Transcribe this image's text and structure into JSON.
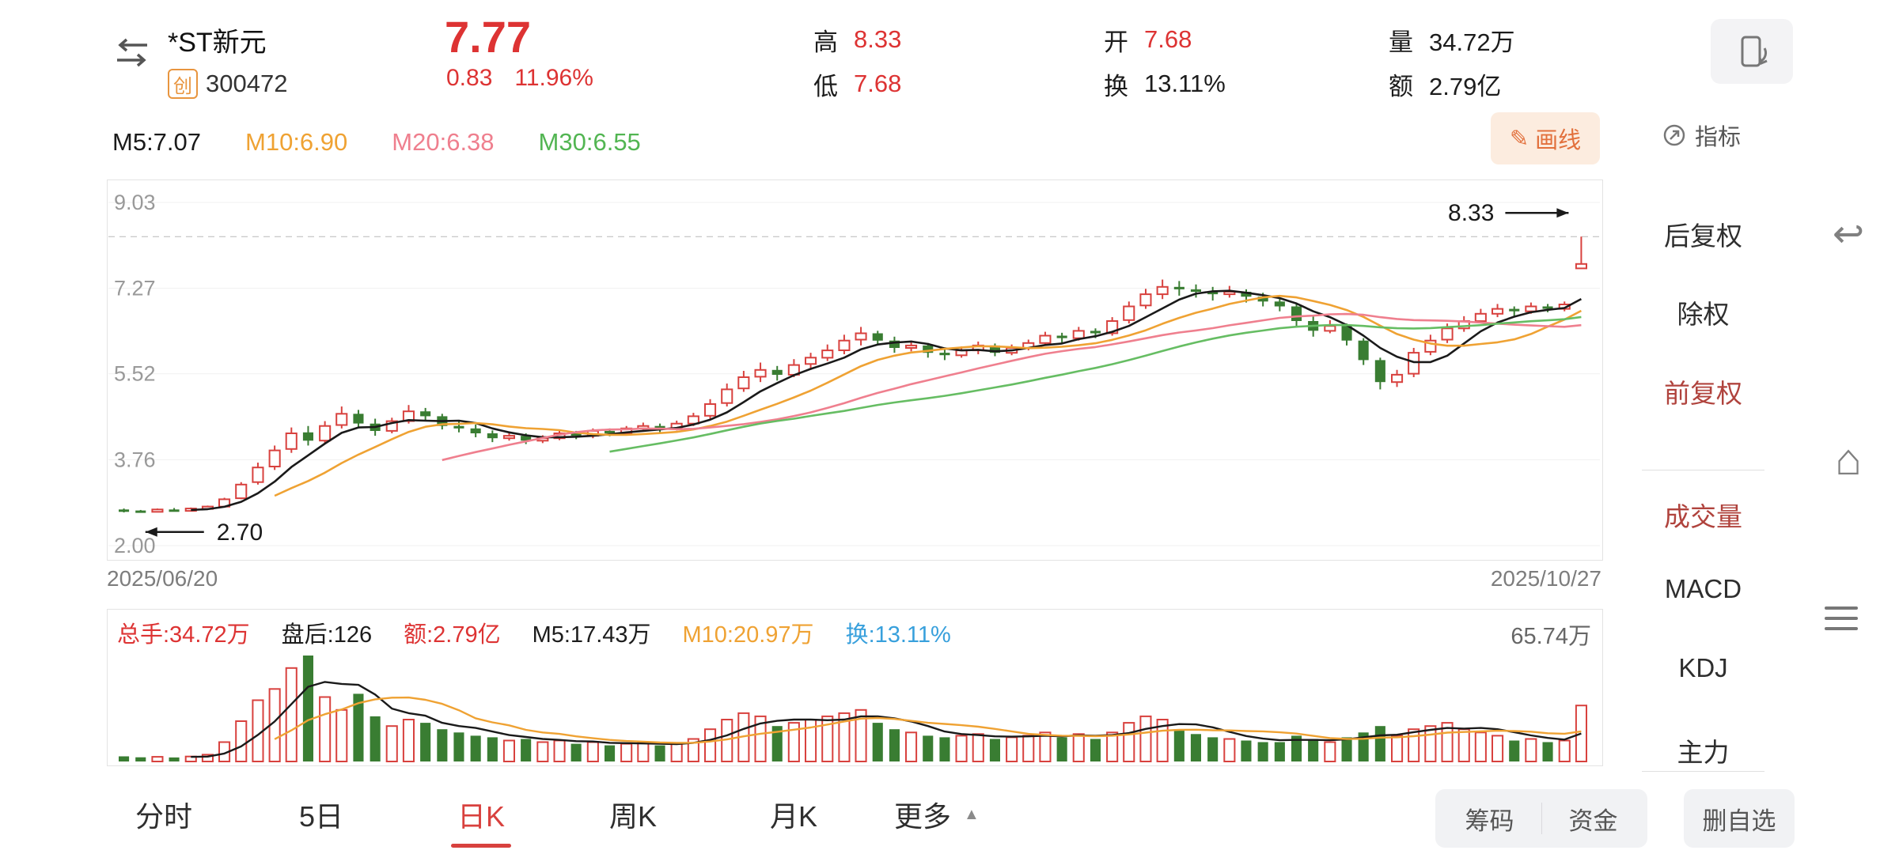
{
  "header": {
    "stock_name": "*ST新元",
    "board_badge": "创",
    "stock_code": "300472",
    "price": "7.77",
    "change": "0.83",
    "change_pct": "11.96%",
    "stats": [
      {
        "label": "高",
        "value": "8.33"
      },
      {
        "label": "低",
        "value": "7.68"
      },
      {
        "label": "开",
        "value": "7.68"
      },
      {
        "label": "换",
        "value": "13.11%"
      },
      {
        "label": "量",
        "value": "34.72万"
      },
      {
        "label": "额",
        "value": "2.79亿"
      }
    ]
  },
  "toolbar": {
    "ma_labels": [
      {
        "text": "M5:7.07"
      },
      {
        "text": "M10:6.90"
      },
      {
        "text": "M20:6.38"
      },
      {
        "text": "M30:6.55"
      }
    ],
    "draw_line_label": "画线",
    "indicator_label": "指标"
  },
  "icons": {
    "pencil": "✎",
    "triangle_up": "▲",
    "undo": "↩",
    "home": "⌂"
  },
  "volume_header": {
    "items": [
      {
        "text": "总手:34.72万"
      },
      {
        "text": "盘后:126"
      },
      {
        "text": "额:2.79亿"
      },
      {
        "text": "M5:17.43万"
      },
      {
        "text": "M10:20.97万"
      },
      {
        "text": "换:13.11%"
      }
    ],
    "max_label": "65.74万"
  },
  "sidebar": {
    "items": [
      {
        "label": "后复权",
        "active": false
      },
      {
        "label": "除权",
        "active": false
      },
      {
        "label": "前复权",
        "active": true
      },
      {
        "label": "成交量",
        "active": true
      },
      {
        "label": "MACD",
        "active": false
      },
      {
        "label": "KDJ",
        "active": false
      },
      {
        "label": "主力",
        "active": false
      }
    ]
  },
  "tabs": [
    {
      "label": "分时",
      "active": false
    },
    {
      "label": "5日",
      "active": false
    },
    {
      "label": "日K",
      "active": true
    },
    {
      "label": "周K",
      "active": false
    },
    {
      "label": "月K",
      "active": false
    },
    {
      "label": "更多",
      "active": false
    }
  ],
  "bottom_buttons": [
    {
      "label": "筹码"
    },
    {
      "label": "资金"
    },
    {
      "label": "删自选"
    }
  ],
  "colors": {
    "up": "#d8413e",
    "down": "#397d32",
    "ma5": "#1a1a1a",
    "ma10": "#efa233",
    "ma20": "#ef7f8e",
    "ma30": "#66bd63",
    "accent_red": "#dd3333",
    "blue": "#38a0dc"
  },
  "chart_data": {
    "type": "candlestick",
    "symbol": "*ST新元 300472",
    "date_range": [
      "2025/06/20",
      "2025/10/27"
    ],
    "y_ticks": [
      9.03,
      7.27,
      5.52,
      3.76,
      2.0
    ],
    "reference_high": 8.33,
    "marked_low": 2.7,
    "volume_axis_max": 65.74,
    "ma_periods": [
      5,
      10,
      20,
      30
    ],
    "vol_ma_periods": [
      5,
      10
    ],
    "ohlc": [
      [
        2.74,
        2.76,
        2.68,
        2.72
      ],
      [
        2.72,
        2.73,
        2.7,
        2.7
      ],
      [
        2.7,
        2.76,
        2.69,
        2.74
      ],
      [
        2.74,
        2.77,
        2.71,
        2.73
      ],
      [
        2.73,
        2.78,
        2.72,
        2.76
      ],
      [
        2.76,
        2.82,
        2.74,
        2.8
      ],
      [
        2.8,
        2.98,
        2.79,
        2.95
      ],
      [
        2.97,
        3.3,
        2.95,
        3.25
      ],
      [
        3.3,
        3.7,
        3.25,
        3.6
      ],
      [
        3.62,
        4.05,
        3.55,
        3.95
      ],
      [
        3.98,
        4.42,
        3.9,
        4.3
      ],
      [
        4.32,
        4.45,
        4.05,
        4.15
      ],
      [
        4.15,
        4.55,
        4.1,
        4.45
      ],
      [
        4.47,
        4.85,
        4.4,
        4.7
      ],
      [
        4.7,
        4.78,
        4.42,
        4.5
      ],
      [
        4.5,
        4.6,
        4.25,
        4.35
      ],
      [
        4.35,
        4.62,
        4.3,
        4.55
      ],
      [
        4.55,
        4.88,
        4.5,
        4.75
      ],
      [
        4.75,
        4.82,
        4.55,
        4.65
      ],
      [
        4.65,
        4.7,
        4.38,
        4.45
      ],
      [
        4.45,
        4.55,
        4.32,
        4.4
      ],
      [
        4.4,
        4.48,
        4.22,
        4.3
      ],
      [
        4.3,
        4.36,
        4.12,
        4.2
      ],
      [
        4.2,
        4.34,
        4.15,
        4.25
      ],
      [
        4.25,
        4.3,
        4.08,
        4.15
      ],
      [
        4.15,
        4.26,
        4.1,
        4.2
      ],
      [
        4.2,
        4.36,
        4.16,
        4.3
      ],
      [
        4.3,
        4.35,
        4.18,
        4.25
      ],
      [
        4.25,
        4.4,
        4.2,
        4.35
      ],
      [
        4.35,
        4.4,
        4.24,
        4.3
      ],
      [
        4.3,
        4.45,
        4.26,
        4.4
      ],
      [
        4.4,
        4.52,
        4.35,
        4.45
      ],
      [
        4.45,
        4.5,
        4.32,
        4.4
      ],
      [
        4.4,
        4.56,
        4.36,
        4.5
      ],
      [
        4.5,
        4.72,
        4.45,
        4.65
      ],
      [
        4.66,
        5.0,
        4.6,
        4.9
      ],
      [
        4.92,
        5.32,
        4.85,
        5.2
      ],
      [
        5.22,
        5.58,
        5.15,
        5.45
      ],
      [
        5.46,
        5.75,
        5.35,
        5.6
      ],
      [
        5.6,
        5.68,
        5.38,
        5.5
      ],
      [
        5.5,
        5.82,
        5.45,
        5.7
      ],
      [
        5.72,
        5.95,
        5.6,
        5.85
      ],
      [
        5.85,
        6.12,
        5.78,
        6.0
      ],
      [
        6.0,
        6.32,
        5.92,
        6.2
      ],
      [
        6.22,
        6.48,
        6.1,
        6.35
      ],
      [
        6.35,
        6.4,
        6.1,
        6.2
      ],
      [
        6.2,
        6.28,
        5.95,
        6.05
      ],
      [
        6.05,
        6.2,
        5.98,
        6.1
      ],
      [
        6.1,
        6.15,
        5.85,
        5.95
      ],
      [
        5.95,
        6.05,
        5.8,
        5.9
      ],
      [
        5.9,
        6.08,
        5.85,
        6.0
      ],
      [
        6.0,
        6.18,
        5.92,
        6.1
      ],
      [
        6.1,
        6.14,
        5.88,
        5.95
      ],
      [
        5.95,
        6.12,
        5.9,
        6.05
      ],
      [
        6.05,
        6.22,
        6.0,
        6.15
      ],
      [
        6.15,
        6.38,
        6.1,
        6.3
      ],
      [
        6.3,
        6.36,
        6.15,
        6.25
      ],
      [
        6.25,
        6.48,
        6.2,
        6.4
      ],
      [
        6.4,
        6.45,
        6.25,
        6.35
      ],
      [
        6.35,
        6.68,
        6.3,
        6.6
      ],
      [
        6.62,
        7.0,
        6.55,
        6.9
      ],
      [
        6.92,
        7.26,
        6.85,
        7.15
      ],
      [
        7.15,
        7.45,
        7.05,
        7.3
      ],
      [
        7.3,
        7.42,
        7.12,
        7.25
      ],
      [
        7.25,
        7.35,
        7.08,
        7.2
      ],
      [
        7.2,
        7.3,
        7.02,
        7.15
      ],
      [
        7.15,
        7.32,
        7.08,
        7.2
      ],
      [
        7.2,
        7.25,
        6.98,
        7.1
      ],
      [
        7.1,
        7.18,
        6.9,
        7.0
      ],
      [
        7.0,
        7.08,
        6.8,
        6.9
      ],
      [
        6.9,
        6.95,
        6.5,
        6.6
      ],
      [
        6.6,
        6.7,
        6.28,
        6.4
      ],
      [
        6.4,
        6.62,
        6.35,
        6.5
      ],
      [
        6.5,
        6.55,
        6.1,
        6.2
      ],
      [
        6.2,
        6.25,
        5.7,
        5.8
      ],
      [
        5.8,
        5.85,
        5.2,
        5.35
      ],
      [
        5.35,
        5.6,
        5.25,
        5.5
      ],
      [
        5.52,
        6.05,
        5.45,
        5.95
      ],
      [
        5.97,
        6.32,
        5.9,
        6.2
      ],
      [
        6.22,
        6.55,
        6.15,
        6.45
      ],
      [
        6.45,
        6.7,
        6.38,
        6.6
      ],
      [
        6.6,
        6.85,
        6.55,
        6.75
      ],
      [
        6.75,
        6.95,
        6.68,
        6.85
      ],
      [
        6.85,
        6.9,
        6.7,
        6.8
      ],
      [
        6.8,
        6.98,
        6.75,
        6.9
      ],
      [
        6.9,
        6.95,
        6.78,
        6.85
      ],
      [
        6.85,
        7.0,
        6.8,
        6.94
      ],
      [
        7.68,
        8.33,
        7.68,
        7.77
      ]
    ],
    "volume": [
      3.2,
      2.6,
      2.9,
      2.5,
      3.1,
      4.2,
      12,
      25,
      38,
      45,
      58,
      65.74,
      40,
      32,
      42,
      28,
      22,
      26,
      24,
      20,
      18,
      16,
      15,
      13,
      14,
      12,
      13,
      11,
      12,
      10,
      11,
      12,
      10,
      11,
      14,
      20,
      26,
      30,
      28,
      22,
      24,
      26,
      28,
      30,
      32,
      24,
      20,
      18,
      16,
      15,
      16,
      17,
      14,
      15,
      16,
      18,
      15,
      17,
      14,
      18,
      24,
      28,
      26,
      20,
      17,
      15,
      14,
      13,
      12,
      12,
      16,
      14,
      12,
      15,
      18,
      22,
      16,
      20,
      22,
      24,
      20,
      18,
      16,
      13,
      14,
      12,
      13,
      34.72
    ]
  }
}
